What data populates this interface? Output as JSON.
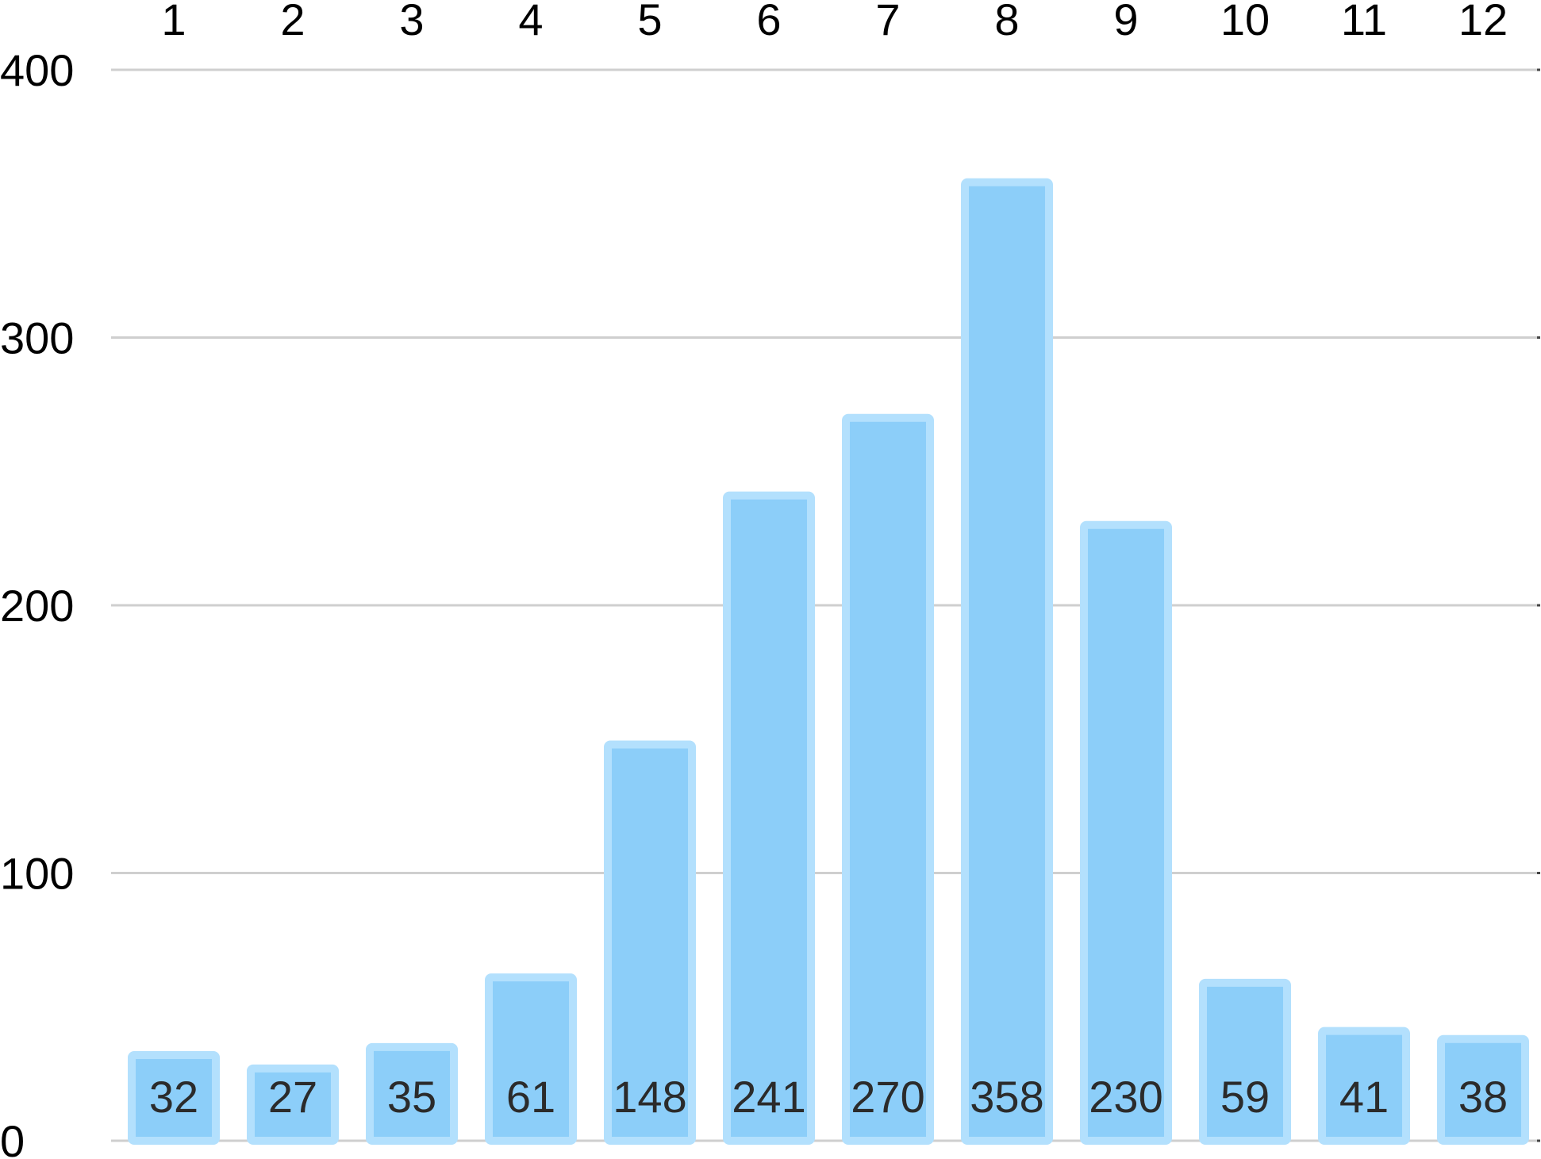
{
  "chart_data": {
    "type": "bar",
    "categories": [
      "1",
      "2",
      "3",
      "4",
      "5",
      "6",
      "7",
      "8",
      "9",
      "10",
      "11",
      "12"
    ],
    "values": [
      32,
      27,
      35,
      61,
      148,
      241,
      270,
      358,
      230,
      59,
      41,
      38
    ],
    "y_ticks": [
      "0",
      "100",
      "200",
      "300",
      "400"
    ],
    "ylim": [
      0,
      400
    ],
    "x_axis_position": "top",
    "grid": true,
    "data_labels": true,
    "colors": {
      "bar_fill": "#8ccef9",
      "bar_stroke": "#b3e0fd",
      "grid": "#cfcfcf"
    }
  }
}
